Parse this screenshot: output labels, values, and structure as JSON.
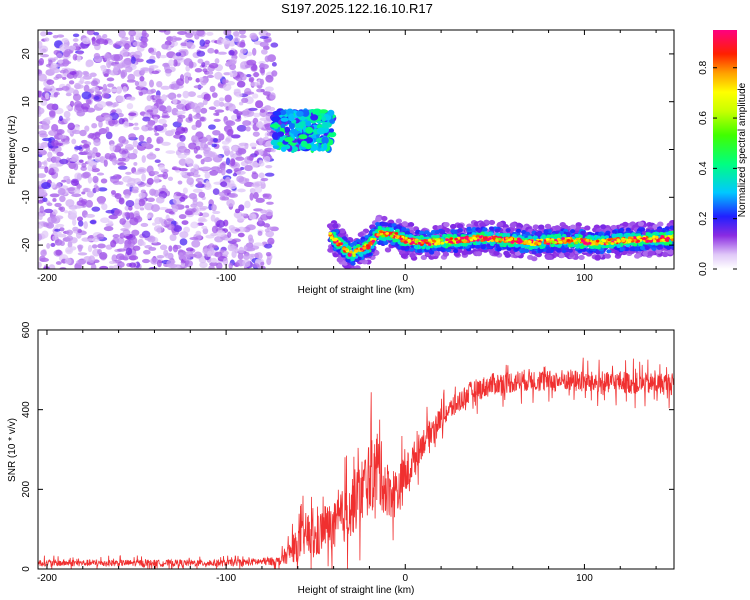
{
  "title": "S197.2025.122.16.10.R17",
  "chart_data": [
    {
      "type": "heatmap",
      "xlabel": "Height of straight line (km)",
      "ylabel": "Frequency (Hz)",
      "xlim": [
        -205,
        150
      ],
      "ylim": [
        -25,
        25
      ],
      "x_ticks": [
        -200,
        -100,
        0,
        100
      ],
      "x_tick_labels": [
        "-200",
        "-100",
        "0",
        "100"
      ],
      "y_ticks": [
        -20,
        -10,
        0,
        10,
        20
      ],
      "y_tick_labels": [
        "-20",
        "-10",
        "0",
        "10",
        "20"
      ],
      "colorbar": {
        "label": "Normalized spectral amplitude",
        "range": [
          0,
          0.95
        ],
        "ticks": [
          0,
          0.2,
          0.4,
          0.6,
          0.8
        ],
        "tick_labels": [
          "0.0",
          "0.2",
          "0.4",
          "0.6",
          "0.8"
        ]
      },
      "features": [
        {
          "kind": "noise",
          "x_range": [
            -205,
            -73
          ],
          "f_range": [
            -25,
            25
          ],
          "amplitude": [
            0.05,
            0.15
          ]
        },
        {
          "kind": "blob",
          "x_range": [
            -73,
            -40
          ],
          "f_range": [
            0,
            8
          ],
          "amplitude": [
            0.15,
            0.45
          ]
        },
        {
          "kind": "tone_line",
          "x": [
            -42,
            -30,
            -20,
            -15,
            -5,
            0,
            10,
            20,
            30,
            40,
            50,
            60,
            70,
            80,
            90,
            100,
            110,
            120,
            130,
            140,
            150
          ],
          "f": [
            -18,
            -22,
            -20,
            -17.5,
            -18,
            -19,
            -19.5,
            -19.2,
            -19,
            -18.5,
            -18.7,
            -19,
            -19.5,
            -19.2,
            -19,
            -19.3,
            -19.4,
            -19,
            -18.8,
            -18.7,
            -18.5
          ],
          "amplitude": 0.9
        }
      ]
    },
    {
      "type": "line",
      "xlabel": "Height of straight line (km)",
      "ylabel": "SNR (10 * v/v)",
      "xlim": [
        -205,
        150
      ],
      "ylim": [
        0,
        600
      ],
      "x_ticks": [
        -200,
        -100,
        0,
        100
      ],
      "x_tick_labels": [
        "-200",
        "-100",
        "0",
        "100"
      ],
      "y_ticks": [
        0,
        200,
        400,
        600
      ],
      "y_tick_labels": [
        "0",
        "200",
        "400",
        "600"
      ],
      "series": [
        {
          "color": "#f03030",
          "x": [
            -205,
            -150,
            -100,
            -70,
            -60,
            -55,
            -50,
            -45,
            -40,
            -35,
            -30,
            -25,
            -20,
            -15,
            -10,
            -5,
            0,
            5,
            10,
            15,
            20,
            25,
            30,
            35,
            40,
            50,
            60,
            70,
            80,
            90,
            100,
            110,
            120,
            130,
            140,
            150
          ],
          "y": [
            15,
            15,
            15,
            20,
            60,
            90,
            70,
            110,
            100,
            130,
            160,
            190,
            230,
            250,
            200,
            190,
            230,
            280,
            320,
            350,
            380,
            400,
            420,
            440,
            450,
            465,
            470,
            475,
            470,
            475,
            470,
            465,
            470,
            465,
            465,
            465
          ],
          "spread": [
            12,
            12,
            12,
            15,
            60,
            80,
            80,
            80,
            90,
            100,
            110,
            120,
            130,
            140,
            100,
            90,
            80,
            60,
            50,
            45,
            40,
            40,
            40,
            40,
            40,
            40,
            40,
            40,
            40,
            40,
            40,
            40,
            40,
            40,
            40,
            40
          ]
        }
      ]
    }
  ]
}
